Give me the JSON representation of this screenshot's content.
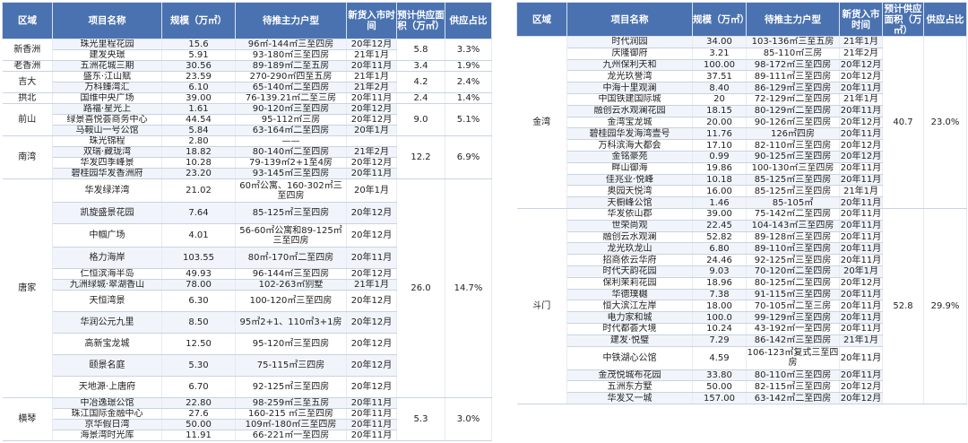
{
  "headers": {
    "region": "区域",
    "project": "项目名称",
    "scale": "规模（万㎡）",
    "unit": "待推主力户型",
    "date": "新货入市时间",
    "area": "预计供应面积（万㎡）",
    "share": "供应占比"
  },
  "left_table": [
    {
      "region": "新香洲",
      "share_area": "5.8",
      "share_pct": "3.3%",
      "rows": [
        {
          "project": "珠光里程花园",
          "scale": "15.6",
          "unit": "96㎡-144㎡三至四房",
          "date": "20年12月"
        },
        {
          "project": "建发央璟",
          "scale": "5.91",
          "unit": "93-180㎡三至四房",
          "date": "21年1月"
        }
      ]
    },
    {
      "region": "老香洲",
      "share_area": "3.4",
      "share_pct": "1.9%",
      "rows": [
        {
          "project": "五洲花城三期",
          "scale": "30.56",
          "unit": "89-189㎡二至五房",
          "date": "20年11月"
        }
      ]
    },
    {
      "region": "吉大",
      "share_area": "4.2",
      "share_pct": "2.4%",
      "rows": [
        {
          "project": "盛东·江山赋",
          "scale": "23.59",
          "unit": "270-290㎡四至五房",
          "date": "21年1月"
        },
        {
          "project": "万科臻湾汇",
          "scale": "6.10",
          "unit": "65-140㎡二至四房",
          "date": "21年2月"
        }
      ]
    },
    {
      "region": "拱北",
      "share_area": "2.4",
      "share_pct": "1.4%",
      "rows": [
        {
          "project": "国维中央广场",
          "scale": "39.00",
          "unit": "76-139.21㎡二至三房",
          "date": "20年11月"
        }
      ]
    },
    {
      "region": "前山",
      "share_area": "9.0",
      "share_pct": "5.1%",
      "rows": [
        {
          "project": "路福·星光上",
          "scale": "1.61",
          "unit": "90-120㎡三至四房",
          "date": "20年12月"
        },
        {
          "project": "绿景喜悦荟商务中心",
          "scale": "44.54",
          "unit": "95-112㎡三房",
          "date": "20年12月"
        },
        {
          "project": "马鞍山一号公馆",
          "scale": "5.84",
          "unit": "63-164㎡二至四房",
          "date": "20年1月"
        }
      ]
    },
    {
      "region": "南湾",
      "share_area": "12.2",
      "share_pct": "6.9%",
      "rows": [
        {
          "project": "珠光锦程",
          "scale": "2.80",
          "unit": "——",
          "date": ""
        },
        {
          "project": "双瑞·藏珑湾",
          "scale": "18.82",
          "unit": "80-140㎡二至四房",
          "date": "21年2月"
        },
        {
          "project": "华发四季峰景",
          "scale": "10.28",
          "unit": "79-139㎡2+1至4房",
          "date": "20年12月"
        },
        {
          "project": "碧桂园华发香洲府",
          "scale": "23.20",
          "unit": "93-145㎡三至四房",
          "date": "20年11月"
        }
      ]
    },
    {
      "region": "唐家",
      "share_area": "26.0",
      "share_pct": "14.7%",
      "rows": [
        {
          "project": "华发绿洋湾",
          "scale": "21.02",
          "unit": "60㎡公寓、160-302㎡三至四房",
          "date": "20年1月",
          "h": 3
        },
        {
          "project": "凯旋盛景花园",
          "scale": "7.64",
          "unit": "85-125㎡三至四房",
          "date": "20年12月",
          "h": 2
        },
        {
          "project": "中帼广场",
          "scale": "4.01",
          "unit": "56-60㎡公寓和89-125㎡三至四房",
          "date": "20年12月",
          "h": 3
        },
        {
          "project": "格力海岸",
          "scale": "103.55",
          "unit": "80㎡-170㎡二至四房",
          "date": "20年11月",
          "h": 2
        },
        {
          "project": "仁恒滨海半岛",
          "scale": "49.93",
          "unit": "96-144㎡三至四房",
          "date": "20年12月"
        },
        {
          "project": "九洲绿城·翠湖香山",
          "scale": "78.00",
          "unit": "102-263㎡别墅",
          "date": "21年1月"
        },
        {
          "project": "天恒湾景",
          "scale": "6.30",
          "unit": "100-120㎡三至四房",
          "date": "20年12月",
          "h": 2
        },
        {
          "project": "华润公元九里",
          "scale": "8.50",
          "unit": "95㎡2+1、110㎡3+1房",
          "date": "20年12月",
          "h": 2
        },
        {
          "project": "高新宝龙城",
          "scale": "12.50",
          "unit": "95-120㎡三至四房",
          "date": "20年12月",
          "h": 2
        },
        {
          "project": "颐景名庭",
          "scale": "5.30",
          "unit": "75-115㎡三四房",
          "date": "20年12月",
          "h": 2
        },
        {
          "project": "天地源·上唐府",
          "scale": "6.70",
          "unit": "92-125㎡三至四房",
          "date": "20年12月",
          "h": 2
        }
      ]
    },
    {
      "region": "横琴",
      "share_area": "5.3",
      "share_pct": "3.0%",
      "rows": [
        {
          "project": "中冶逸璟公馆",
          "scale": "22.80",
          "unit": "98-259㎡三至五房",
          "date": "20年11月"
        },
        {
          "project": "珠江国际金融中心",
          "scale": "27.6",
          "unit": "160-215 ㎡三至四房",
          "date": "20年11月"
        },
        {
          "project": "京华假日湾",
          "scale": "50.00",
          "unit": "109㎡-180㎡三至四房",
          "date": "20年11月"
        },
        {
          "project": "海景湾时光库",
          "scale": "11.91",
          "unit": "66-221㎡一至四房",
          "date": "20年11月"
        }
      ]
    }
  ],
  "right_table": [
    {
      "region": "金湾",
      "share_area": "40.7",
      "share_pct": "23.0%",
      "rows": [
        {
          "project": "时代润园",
          "scale": "34.00",
          "unit": "103-136㎡三至五房",
          "date": "21年1月"
        },
        {
          "project": "庆隆御府",
          "scale": "3.21",
          "unit": "85-110㎡三房",
          "date": "21年2月"
        },
        {
          "project": "九州保利天和",
          "scale": "100.00",
          "unit": "98-172㎡三至四房",
          "date": "20年12月"
        },
        {
          "project": "龙光玖誉湾",
          "scale": "37.51",
          "unit": "89-111㎡三至四房",
          "date": "20年12月"
        },
        {
          "project": "中海十里观澜",
          "scale": "8.40",
          "unit": "86-129㎡三至四房",
          "date": "20年11月"
        },
        {
          "project": "中国铁建国际城",
          "scale": "20",
          "unit": "72-129㎡二至四房",
          "date": "21年1月"
        },
        {
          "project": "融创云水观澜花园",
          "scale": "18.15",
          "unit": "80-129㎡二至四房",
          "date": "20年11月"
        },
        {
          "project": "金湾宝龙城",
          "scale": "20.00",
          "unit": "90-126㎡三至四房",
          "date": "20年12月"
        },
        {
          "project": "碧桂园华发海湾壹号",
          "scale": "11.76",
          "unit": "126㎡四房",
          "date": "20年11月"
        },
        {
          "project": "万科滨海大都会",
          "scale": "17.10",
          "unit": "82-110㎡三至四房",
          "date": "20年12月"
        },
        {
          "project": "金铭豪苑",
          "scale": "0.99",
          "unit": "90-125㎡三至四房",
          "date": "20年12月"
        },
        {
          "project": "畔山御海",
          "scale": "19.86",
          "unit": "100-130㎡三至四房",
          "date": "20年11月"
        },
        {
          "project": "佳兆业·悦峰",
          "scale": "10.18",
          "unit": "85-125㎡三至四房",
          "date": "20年11月"
        },
        {
          "project": "奥园天悦湾",
          "scale": "16.00",
          "unit": "85-125㎡三至四房",
          "date": "21年1月"
        },
        {
          "project": "天橱峰公馆",
          "scale": "1.46",
          "unit": "85-105㎡",
          "date": "20年11月"
        }
      ]
    },
    {
      "region": "斗门",
      "share_area": "52.8",
      "share_pct": "29.9%",
      "rows": [
        {
          "project": "华发依山郡",
          "scale": "39.00",
          "unit": "75-142㎡二至四房",
          "date": "20年11月"
        },
        {
          "project": "世荣尚观",
          "scale": "22.45",
          "unit": "104-143㎡三至四房",
          "date": "20年11月"
        },
        {
          "project": "融创云水观澜",
          "scale": "52.82",
          "unit": "89-128㎡三至四房",
          "date": "20年11月"
        },
        {
          "project": "龙光玖龙山",
          "scale": "6.80",
          "unit": "89-110㎡三至四房",
          "date": "20年11月"
        },
        {
          "project": "招商依云华府",
          "scale": "24.46",
          "unit": "92-125㎡三至四房",
          "date": "20年11月"
        },
        {
          "project": "时代天韵花园",
          "scale": "9.03",
          "unit": "70-120㎡二至四房",
          "date": "20年1月"
        },
        {
          "project": "保利茉莉花园",
          "scale": "18.96",
          "unit": "80-125㎡二至四房",
          "date": "20年12月"
        },
        {
          "project": "华德璞樾",
          "scale": "7.38",
          "unit": "91-115㎡三至四房",
          "date": "20年11月"
        },
        {
          "project": "恒大滨江左岸",
          "scale": "18.00",
          "unit": "70-105㎡二至三房",
          "date": "20年11月"
        },
        {
          "project": "电力家和城",
          "scale": "100.0",
          "unit": "99-129㎡三至四房",
          "date": "20年11月"
        },
        {
          "project": "时代都荟大境",
          "scale": "10.24",
          "unit": "43-192㎡一至四房",
          "date": "20年11月"
        },
        {
          "project": "建发·悦璧",
          "scale": "7.29",
          "unit": "86-142㎡三至四房",
          "date": "21年1月"
        },
        {
          "project": "中铁湖心公馆",
          "scale": "4.59",
          "unit": "106-123㎡复式三至四房",
          "date": "20年11月",
          "h": 2
        },
        {
          "project": "金茂悦城布花园",
          "scale": "33.80",
          "unit": "80-110㎡三至四房",
          "date": "20年11月"
        },
        {
          "project": "五洲东方墅",
          "scale": "50.00",
          "unit": "82-115㎡三至四房",
          "date": "20年12月"
        },
        {
          "project": "华发又一城",
          "scale": "157.00",
          "unit": "63-142㎡二至四房",
          "date": "20年12月"
        }
      ]
    }
  ]
}
